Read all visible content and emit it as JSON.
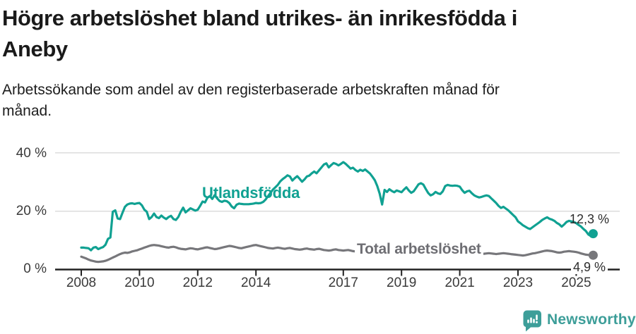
{
  "header": {
    "title_lines": [
      "Högre arbetslöshet bland utrikes- än inrikesfödda i",
      "Aneby"
    ],
    "subtitle_lines": [
      "Arbetssökande som andel av den registerbaserade arbetskraften månad för",
      "månad."
    ]
  },
  "chart_data": {
    "type": "line",
    "title": "Högre arbetslöshet bland utrikes- än inrikesfödda i Aneby",
    "unit": "%",
    "x_start": "2008-01",
    "frequency": "monthly",
    "ylim": [
      0,
      43
    ],
    "grid": "horizontal",
    "legend_position": "inline-labels",
    "y_ticks": [
      {
        "value": 0,
        "label": "0 %"
      },
      {
        "value": 20,
        "label": "20 %"
      },
      {
        "value": 40,
        "label": "40 %"
      }
    ],
    "x_ticks": [
      {
        "year": 2008,
        "label": "2008"
      },
      {
        "year": 2010,
        "label": "2010"
      },
      {
        "year": 2012,
        "label": "2012"
      },
      {
        "year": 2014,
        "label": "2014"
      },
      {
        "year": 2017,
        "label": "2017"
      },
      {
        "year": 2019,
        "label": "2019"
      },
      {
        "year": 2021,
        "label": "2021"
      },
      {
        "year": 2023,
        "label": "2023"
      },
      {
        "year": 2025,
        "label": "2025"
      }
    ],
    "series": [
      {
        "name": "Utlandsfödda",
        "color": "#10A192",
        "end_label": "12,3 %",
        "end_value": 12.3,
        "values": [
          7.5,
          7.5,
          7.4,
          7.3,
          6.6,
          7.5,
          7.7,
          7.0,
          7.4,
          7.7,
          8.5,
          10.5,
          11.0,
          19.8,
          20.3,
          17.5,
          17.3,
          19.5,
          21.5,
          22.3,
          22.6,
          22.7,
          22.5,
          22.7,
          22.8,
          22.0,
          20.5,
          19.8,
          17.3,
          18.0,
          19.2,
          18.0,
          17.6,
          18.5,
          17.8,
          17.3,
          18.0,
          18.4,
          17.3,
          17.0,
          18.0,
          19.8,
          21.2,
          19.6,
          20.3,
          21.0,
          20.6,
          20.2,
          20.5,
          21.8,
          23.3,
          23.0,
          24.6,
          25.2,
          24.2,
          25.5,
          24.4,
          23.5,
          23.2,
          23.6,
          23.4,
          22.8,
          21.6,
          21.0,
          22.2,
          22.6,
          22.5,
          22.4,
          22.4,
          22.4,
          22.5,
          22.6,
          22.8,
          22.7,
          22.8,
          23.2,
          24.0,
          25.2,
          26.3,
          27.4,
          28.2,
          29.0,
          30.2,
          31.0,
          31.6,
          32.3,
          31.9,
          30.5,
          31.3,
          32.0,
          31.1,
          30.1,
          30.9,
          31.9,
          32.2,
          33.0,
          33.6,
          33.0,
          34.0,
          35.0,
          36.0,
          36.4,
          35.0,
          35.8,
          36.5,
          36.2,
          35.7,
          36.2,
          36.8,
          36.2,
          35.4,
          34.6,
          34.9,
          34.1,
          33.6,
          34.2,
          33.8,
          34.3,
          33.6,
          32.9,
          31.8,
          30.6,
          28.6,
          26.0,
          22.3,
          27.3,
          26.6,
          27.5,
          26.9,
          26.5,
          27.1,
          26.8,
          26.5,
          27.4,
          28.2,
          27.1,
          26.3,
          26.8,
          28.0,
          29.2,
          29.6,
          29.1,
          27.6,
          26.2,
          25.4,
          25.8,
          26.6,
          26.1,
          25.9,
          26.8,
          28.6,
          29.0,
          28.8,
          28.7,
          28.8,
          28.7,
          28.4,
          27.2,
          26.3,
          26.8,
          27.0,
          26.1,
          25.4,
          25.0,
          24.7,
          24.9,
          25.2,
          25.4,
          25.2,
          24.4,
          23.6,
          22.8,
          21.8,
          21.1,
          21.5,
          20.9,
          20.3,
          19.5,
          18.7,
          17.9,
          16.5,
          15.9,
          15.2,
          14.7,
          14.2,
          13.9,
          14.5,
          15.1,
          15.7,
          16.3,
          17.0,
          17.5,
          17.9,
          17.4,
          17.1,
          16.7,
          16.0,
          15.5,
          14.7,
          15.4,
          16.3,
          16.7,
          16.5,
          16.3,
          15.9,
          15.3,
          14.7,
          13.9,
          13.2,
          12.0,
          11.5,
          12.3
        ]
      },
      {
        "name": "Total arbetslöshet",
        "color": "#77777B",
        "end_label": "4,9 %",
        "end_value": 4.9,
        "values": [
          4.4,
          4.1,
          3.8,
          3.4,
          3.1,
          2.9,
          2.7,
          2.6,
          2.7,
          2.8,
          3.0,
          3.3,
          3.7,
          4.1,
          4.5,
          4.9,
          5.3,
          5.6,
          5.8,
          5.7,
          5.9,
          6.2,
          6.4,
          6.6,
          6.9,
          7.2,
          7.5,
          7.8,
          8.1,
          8.3,
          8.4,
          8.3,
          8.2,
          8.0,
          7.8,
          7.6,
          7.5,
          7.7,
          7.8,
          7.6,
          7.3,
          7.1,
          7.0,
          6.9,
          7.1,
          7.3,
          7.2,
          7.0,
          6.9,
          7.1,
          7.3,
          7.5,
          7.6,
          7.4,
          7.2,
          7.0,
          7.1,
          7.3,
          7.5,
          7.7,
          7.9,
          8.1,
          8.0,
          7.8,
          7.6,
          7.4,
          7.3,
          7.5,
          7.7,
          7.9,
          8.1,
          8.3,
          8.4,
          8.2,
          8.0,
          7.8,
          7.6,
          7.4,
          7.3,
          7.2,
          7.4,
          7.5,
          7.4,
          7.2,
          7.1,
          7.3,
          7.4,
          7.2,
          7.0,
          6.9,
          6.8,
          6.9,
          7.1,
          7.2,
          7.0,
          6.9,
          6.8,
          7.0,
          7.1,
          6.9,
          6.7,
          6.6,
          6.5,
          6.6,
          6.8,
          6.9,
          6.7,
          6.6,
          6.5,
          6.6,
          6.7,
          6.5,
          6.3,
          6.2,
          6.2,
          6.3,
          6.4,
          6.5,
          6.4,
          6.2,
          6.1,
          6.2,
          6.3,
          6.1,
          5.9,
          5.8,
          5.8,
          5.9,
          6.0,
          6.1,
          6.0,
          5.9,
          5.9,
          6.0,
          6.1,
          5.9,
          5.8,
          5.7,
          5.8,
          5.9,
          6.0,
          6.1,
          6.0,
          5.9,
          5.8,
          5.9,
          6.1,
          6.3,
          6.4,
          6.3,
          6.2,
          6.1,
          6.0,
          5.9,
          5.8,
          5.7,
          5.6,
          5.5,
          5.4,
          5.3,
          5.2,
          5.1,
          5.0,
          5.1,
          5.2,
          5.3,
          5.4,
          5.5,
          5.6,
          5.5,
          5.4,
          5.3,
          5.4,
          5.5,
          5.6,
          5.5,
          5.4,
          5.3,
          5.2,
          5.1,
          5.0,
          4.9,
          4.8,
          4.9,
          5.1,
          5.3,
          5.5,
          5.6,
          5.8,
          6.0,
          6.2,
          6.4,
          6.5,
          6.4,
          6.3,
          6.1,
          5.9,
          5.8,
          5.9,
          6.1,
          6.2,
          6.3,
          6.2,
          6.1,
          6.0,
          5.8,
          5.5,
          5.3,
          5.1,
          5.0,
          4.9,
          4.9
        ]
      }
    ]
  },
  "colors": {
    "foreign_born_line": "#10A192",
    "total_line": "#77777B",
    "gridline": "#dcdcdc",
    "axis": "#222222",
    "brand": "#3D9E99"
  },
  "footer": {
    "brand": "Newsworthy"
  }
}
